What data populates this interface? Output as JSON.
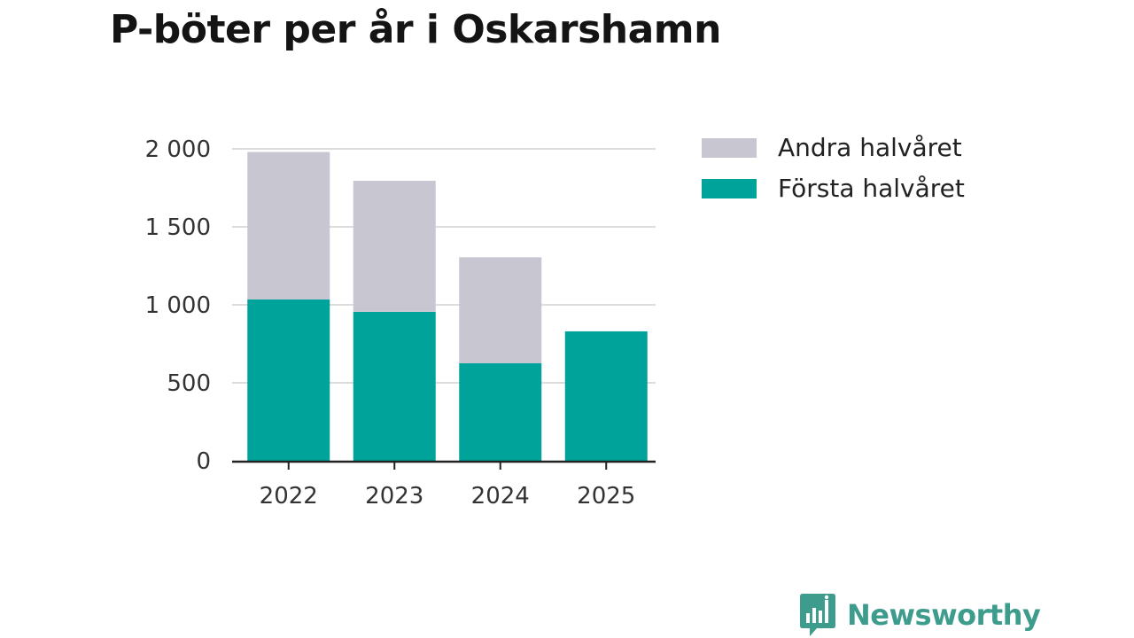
{
  "chart_data": {
    "type": "bar",
    "stacked": true,
    "title": "P-böter per år i Oskarshamn",
    "xlabel": "",
    "ylabel": "",
    "categories": [
      "2022",
      "2023",
      "2024",
      "2025"
    ],
    "series": [
      {
        "name": "Första halvåret",
        "color": "#00a39a",
        "values": [
          1035,
          955,
          625,
          830
        ]
      },
      {
        "name": "Andra halvåret",
        "color": "#c8c6d1",
        "values": [
          945,
          840,
          680,
          0
        ]
      }
    ],
    "ylim": [
      0,
      2000
    ],
    "yticks": [
      0,
      500,
      1000,
      1500,
      2000
    ],
    "ytick_labels": [
      "0",
      "500",
      "1 000",
      "1 500",
      "2 000"
    ],
    "legend": [
      {
        "label": "Andra halvåret",
        "color": "#c8c6d1"
      },
      {
        "label": "Första halvåret",
        "color": "#00a39a"
      }
    ],
    "legend_position": "right",
    "grid": true
  },
  "brand": {
    "name": "Newsworthy",
    "color": "#3d9c8c"
  }
}
